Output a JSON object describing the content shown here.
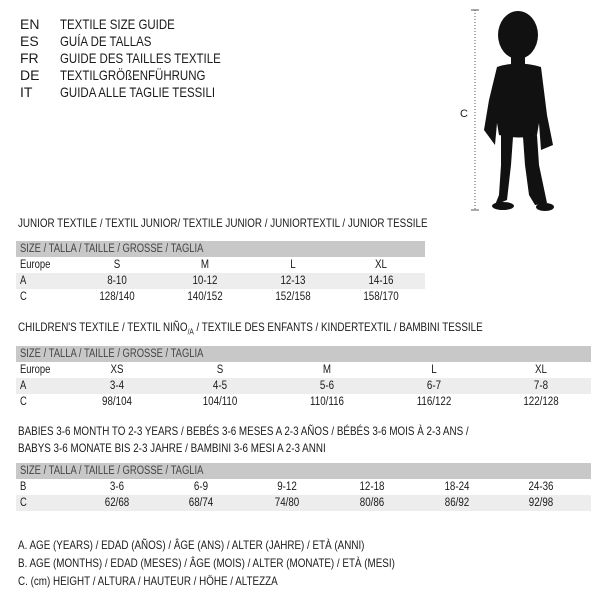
{
  "languages": [
    {
      "code": "EN",
      "title": "TEXTILE SIZE GUIDE"
    },
    {
      "code": "ES",
      "title": "GUÍA DE TALLAS"
    },
    {
      "code": "FR",
      "title": "GUIDE DES TAILLES TEXTILE"
    },
    {
      "code": "DE",
      "title": "TEXTILGRÖßENFÜHRUNG"
    },
    {
      "code": "IT",
      "title": "GUIDA ALLE TAGLIE TESSILI"
    }
  ],
  "figure": {
    "measure_label": "C"
  },
  "junior": {
    "heading": "JUNIOR TEXTILE / TEXTIL JUNIOR/ TEXTILE JUNIOR / JUNIORTEXTIL / JUNIOR TESSILE",
    "header": "SIZE / TALLA / TAILLE / GRÖSSE / TAGLIA",
    "rows": [
      {
        "label": "Europe",
        "values": [
          "S",
          "M",
          "L",
          "XL"
        ]
      },
      {
        "label": "A",
        "values": [
          "8-10",
          "10-12",
          "12-13",
          "14-16"
        ]
      },
      {
        "label": "C",
        "values": [
          "128/140",
          "140/152",
          "152/158",
          "158/170"
        ]
      }
    ]
  },
  "children": {
    "heading": "CHILDREN'S TEXTILE / TEXTIL NIÑO",
    "heading_sub": "/A",
    "heading_rest": " / TEXTILE DES ENFANTS / KINDERTEXTIL / BAMBINI TESSILE",
    "header": "SIZE / TALLA / TAILLE / GRÖSSE / TAGLIA",
    "rows": [
      {
        "label": "Europe",
        "values": [
          "XS",
          "S",
          "M",
          "L",
          "XL"
        ]
      },
      {
        "label": "A",
        "values": [
          "3-4",
          "4-5",
          "5-6",
          "6-7",
          "7-8"
        ]
      },
      {
        "label": "C",
        "values": [
          "98/104",
          "104/110",
          "110/116",
          "116/122",
          "122/128"
        ]
      }
    ]
  },
  "babies": {
    "heading_line1": "BABIES 3-6 MONTH TO 2-3 YEARS / BEBÉS 3-6 MESES A 2-3 AÑOS / BÉBÉS 3-6 MOIS À 2-3 ANS /",
    "heading_line2": "BABYS 3-6 MONATE BIS 2-3 JAHRE / BAMBINI 3-6 MESI A 2-3 ANNI",
    "header": "SIZE / TALLA / TAILLE / GRÖSSE / TAGLIA",
    "rows": [
      {
        "label": "B",
        "values": [
          "3-6",
          "6-9",
          "9-12",
          "12-18",
          "18-24",
          "24-36"
        ]
      },
      {
        "label": "C",
        "values": [
          "62/68",
          "68/74",
          "74/80",
          "80/86",
          "86/92",
          "92/98"
        ]
      }
    ]
  },
  "legend": [
    "A. AGE (YEARS) / EDAD (AÑOS) / ÂGE (ANS) / ALTER (JAHRE) / ETÀ (ANNI)",
    "B. AGE (MONTHS) / EDAD (MESES) / ÂGE (MOIS) / ALTER (MONATE) / ETÀ (MESI)",
    "C. (cm) HEIGHT / ALTURA / HAUTEUR / HÖHE / ALTEZZA"
  ]
}
